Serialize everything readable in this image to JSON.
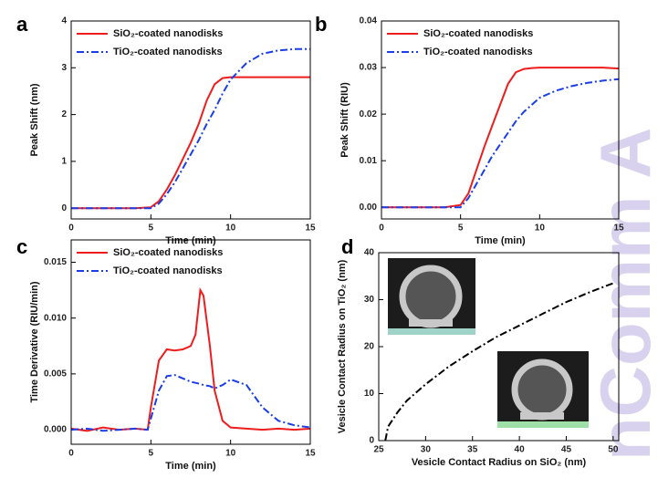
{
  "watermark": "nComm A",
  "chart_data": [
    {
      "type": "line",
      "panel_label": "a",
      "x_label": "Time (min)",
      "y_label": "Peak Shift (nm)",
      "x": [
        0,
        1,
        2,
        3,
        4,
        5,
        5.5,
        6,
        6.5,
        7,
        7.5,
        8,
        8.5,
        9,
        9.5,
        10,
        11,
        12,
        13,
        14,
        15
      ],
      "series": [
        {
          "name": "SiO₂-coated nanodisks",
          "color": "#ee1c1c",
          "dash": false,
          "values": [
            0,
            0,
            0,
            0,
            0,
            0.02,
            0.15,
            0.4,
            0.7,
            1.05,
            1.4,
            1.8,
            2.3,
            2.65,
            2.78,
            2.8,
            2.8,
            2.8,
            2.8,
            2.8,
            2.8
          ]
        },
        {
          "name": "TiO₂-coated nanodisks",
          "color": "#1a3ee8",
          "dash": true,
          "values": [
            0,
            0,
            0,
            0,
            0,
            0,
            0.1,
            0.3,
            0.55,
            0.85,
            1.15,
            1.45,
            1.8,
            2.1,
            2.45,
            2.75,
            3.1,
            3.3,
            3.37,
            3.4,
            3.4
          ]
        }
      ],
      "xlim": [
        0,
        15
      ],
      "xticks": [
        0,
        5,
        10,
        15
      ],
      "ylim": [
        -0.23,
        4
      ],
      "yticks": [
        0,
        1,
        2,
        3,
        4
      ]
    },
    {
      "type": "line",
      "panel_label": "b",
      "x_label": "Time (min)",
      "y_label": "Peak Shift (RIU)",
      "x": [
        0,
        1,
        2,
        3,
        4,
        5,
        5.5,
        6,
        6.5,
        7,
        7.5,
        8,
        8.5,
        9,
        9.5,
        10,
        11,
        12,
        13,
        14,
        15
      ],
      "series": [
        {
          "name": "SiO₂-coated nanodisks",
          "color": "#ee1c1c",
          "dash": false,
          "values": [
            0,
            0,
            0,
            0,
            0,
            0.0005,
            0.003,
            0.008,
            0.013,
            0.0175,
            0.022,
            0.0265,
            0.029,
            0.0297,
            0.0299,
            0.03,
            0.03,
            0.03,
            0.03,
            0.03,
            0.0298
          ]
        },
        {
          "name": "TiO₂-coated nanodisks",
          "color": "#1a3ee8",
          "dash": true,
          "values": [
            0,
            0,
            0,
            0,
            0,
            0,
            0.002,
            0.005,
            0.008,
            0.011,
            0.0135,
            0.016,
            0.0185,
            0.0205,
            0.022,
            0.0235,
            0.025,
            0.026,
            0.0267,
            0.0272,
            0.0275
          ]
        }
      ],
      "xlim": [
        0,
        15
      ],
      "xticks": [
        0,
        5,
        10,
        15
      ],
      "ylim": [
        -0.0025,
        0.04
      ],
      "yticks": [
        {
          "value": 0,
          "label": "0.00"
        },
        {
          "value": 0.01,
          "label": "0.01"
        },
        {
          "value": 0.02,
          "label": "0.02"
        },
        {
          "value": 0.03,
          "label": "0.03"
        },
        {
          "value": 0.04,
          "label": "0.04"
        }
      ]
    },
    {
      "type": "line",
      "panel_label": "c",
      "x_label": "Time (min)",
      "y_label": "Time Derivative (RIU/min)",
      "x": [
        0,
        1,
        2,
        3,
        4,
        4.8,
        5,
        5.5,
        6,
        6.5,
        7,
        7.5,
        7.8,
        8.1,
        8.3,
        8.7,
        9,
        9.5,
        10,
        11,
        12,
        13,
        14,
        15
      ],
      "series": [
        {
          "name": "SiO₂-coated nanodisks",
          "color": "#ee1c1c",
          "dash": false,
          "values": [
            0.0001,
            -0.0001,
            0.0002,
            0,
            0.0001,
            0,
            0.002,
            0.0062,
            0.0072,
            0.0071,
            0.0072,
            0.0075,
            0.0085,
            0.0125,
            0.012,
            0.0075,
            0.0035,
            0.0008,
            0.0002,
            0.0001,
            0,
            0.0001,
            0,
            0.0001
          ]
        },
        {
          "name": "TiO₂-coated nanodisks",
          "color": "#1a3ee8",
          "dash": true,
          "values": [
            0,
            0.0001,
            -0.0001,
            0,
            0.0001,
            0,
            0.001,
            0.0035,
            0.0048,
            0.0049,
            0.0046,
            0.0043,
            0.0042,
            0.0041,
            0.004,
            0.0039,
            0.0037,
            0.004,
            0.0045,
            0.004,
            0.002,
            0.0008,
            0.0004,
            0.0002
          ]
        }
      ],
      "xlim": [
        0,
        15
      ],
      "xticks": [
        0,
        5,
        10,
        15
      ],
      "ylim": [
        -0.0013,
        0.017
      ],
      "yticks": [
        {
          "value": 0,
          "label": "0.000"
        },
        {
          "value": 0.005,
          "label": "0.005"
        },
        {
          "value": 0.01,
          "label": "0.010"
        },
        {
          "value": 0.015,
          "label": "0.015"
        }
      ]
    },
    {
      "type": "line",
      "panel_label": "d",
      "x_label": "Vesicle Contact Radius on SiO₂ (nm)",
      "y_label": "Vesicle Contact Radius on TiO₂ (nm)",
      "x": [
        25.7,
        26,
        27,
        28,
        30,
        32.5,
        35,
        37.5,
        40,
        42.5,
        45,
        47.5,
        50
      ],
      "series": [
        {
          "color": "#000000",
          "dash": true,
          "values": [
            0,
            3,
            6,
            8.5,
            12,
            15.8,
            19,
            22,
            24.5,
            27,
            29.5,
            31.6,
            33.5
          ]
        }
      ],
      "xlim": [
        25,
        50.6
      ],
      "xticks": [
        25,
        30,
        35,
        40,
        45,
        50
      ],
      "ylim": [
        0,
        40
      ],
      "yticks": [
        0,
        10,
        20,
        30,
        40
      ]
    }
  ]
}
